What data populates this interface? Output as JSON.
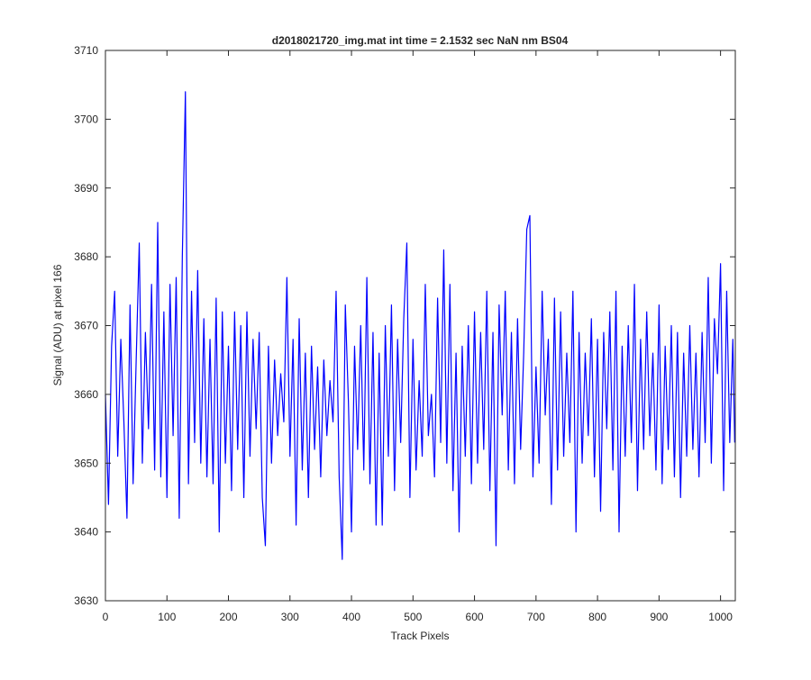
{
  "chart_data": {
    "type": "line",
    "title": "d2018021720_img.mat int time = 2.1532 sec  NaN nm BS04",
    "xlabel": "Track Pixels",
    "ylabel": "Signal (ADU) at pixel 166",
    "xlim": [
      0,
      1024
    ],
    "ylim": [
      3630,
      3710
    ],
    "xticks": [
      0,
      100,
      200,
      300,
      400,
      500,
      600,
      700,
      800,
      900,
      1000
    ],
    "yticks": [
      3630,
      3640,
      3650,
      3660,
      3670,
      3680,
      3690,
      3700,
      3710
    ],
    "x": [
      0,
      5,
      10,
      15,
      20,
      25,
      30,
      35,
      40,
      45,
      50,
      55,
      60,
      65,
      70,
      75,
      80,
      85,
      90,
      95,
      100,
      105,
      110,
      115,
      120,
      125,
      130,
      135,
      140,
      145,
      150,
      155,
      160,
      165,
      170,
      175,
      180,
      185,
      190,
      195,
      200,
      205,
      210,
      215,
      220,
      225,
      230,
      235,
      240,
      245,
      250,
      255,
      260,
      265,
      270,
      275,
      280,
      285,
      290,
      295,
      300,
      305,
      310,
      315,
      320,
      325,
      330,
      335,
      340,
      345,
      350,
      355,
      360,
      365,
      370,
      375,
      380,
      385,
      390,
      395,
      400,
      405,
      410,
      415,
      420,
      425,
      430,
      435,
      440,
      445,
      450,
      455,
      460,
      465,
      470,
      475,
      480,
      485,
      490,
      495,
      500,
      505,
      510,
      515,
      520,
      525,
      530,
      535,
      540,
      545,
      550,
      555,
      560,
      565,
      570,
      575,
      580,
      585,
      590,
      595,
      600,
      605,
      610,
      615,
      620,
      625,
      630,
      635,
      640,
      645,
      650,
      655,
      660,
      665,
      670,
      675,
      680,
      685,
      690,
      695,
      700,
      705,
      710,
      715,
      720,
      725,
      730,
      735,
      740,
      745,
      750,
      755,
      760,
      765,
      770,
      775,
      780,
      785,
      790,
      795,
      800,
      805,
      810,
      815,
      820,
      825,
      830,
      835,
      840,
      845,
      850,
      855,
      860,
      865,
      870,
      875,
      880,
      885,
      890,
      895,
      900,
      905,
      910,
      915,
      920,
      925,
      930,
      935,
      940,
      945,
      950,
      955,
      960,
      965,
      970,
      975,
      980,
      985,
      990,
      995,
      1000,
      1005,
      1010,
      1015,
      1020,
      1023
    ],
    "series": [
      {
        "color": "#0000ff",
        "values": [
          3660,
          3644,
          3667,
          3675,
          3651,
          3668,
          3656,
          3642,
          3673,
          3647,
          3665,
          3682,
          3650,
          3669,
          3655,
          3676,
          3649,
          3685,
          3648,
          3672,
          3645,
          3676,
          3654,
          3677,
          3642,
          3680,
          3704,
          3647,
          3675,
          3653,
          3678,
          3650,
          3671,
          3648,
          3668,
          3647,
          3674,
          3640,
          3672,
          3650,
          3667,
          3646,
          3672,
          3652,
          3670,
          3645,
          3672,
          3651,
          3668,
          3655,
          3669,
          3645,
          3638,
          3667,
          3650,
          3665,
          3654,
          3663,
          3656,
          3677,
          3651,
          3668,
          3641,
          3671,
          3649,
          3666,
          3645,
          3667,
          3652,
          3664,
          3648,
          3665,
          3654,
          3662,
          3656,
          3675,
          3648,
          3636,
          3673,
          3659,
          3640,
          3667,
          3652,
          3670,
          3649,
          3677,
          3647,
          3669,
          3641,
          3666,
          3641,
          3670,
          3651,
          3673,
          3646,
          3668,
          3653,
          3671,
          3682,
          3645,
          3668,
          3649,
          3662,
          3651,
          3676,
          3654,
          3660,
          3648,
          3674,
          3653,
          3681,
          3650,
          3676,
          3646,
          3666,
          3640,
          3667,
          3651,
          3670,
          3647,
          3672,
          3650,
          3669,
          3652,
          3675,
          3646,
          3669,
          3638,
          3673,
          3657,
          3675,
          3649,
          3669,
          3647,
          3671,
          3652,
          3666,
          3684,
          3686,
          3648,
          3664,
          3650,
          3675,
          3657,
          3668,
          3644,
          3674,
          3649,
          3672,
          3651,
          3666,
          3653,
          3675,
          3640,
          3669,
          3650,
          3666,
          3654,
          3671,
          3648,
          3668,
          3643,
          3669,
          3655,
          3672,
          3649,
          3675,
          3640,
          3667,
          3651,
          3670,
          3653,
          3676,
          3646,
          3668,
          3652,
          3672,
          3654,
          3666,
          3649,
          3673,
          3647,
          3667,
          3652,
          3670,
          3648,
          3669,
          3645,
          3666,
          3651,
          3670,
          3652,
          3666,
          3648,
          3669,
          3653,
          3677,
          3650,
          3671,
          3663,
          3679,
          3646,
          3675,
          3653,
          3668,
          3653
        ]
      }
    ]
  }
}
